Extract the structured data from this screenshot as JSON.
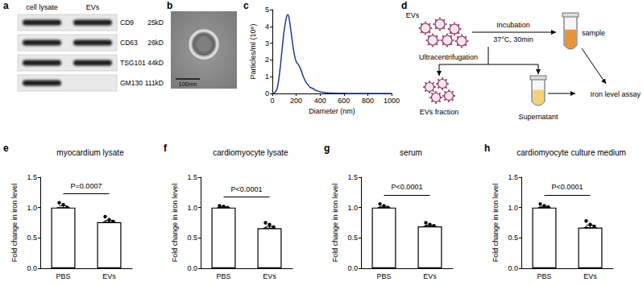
{
  "blot": {
    "panel": "a",
    "lanes": [
      "cell lysate",
      "EVs"
    ],
    "rows": [
      {
        "protein": "CD9",
        "size": "25kD",
        "bands": [
          true,
          true
        ]
      },
      {
        "protein": "CD63",
        "size": "26kD",
        "bands": [
          true,
          true
        ]
      },
      {
        "protein": "TSG101",
        "size": "44kD",
        "bands": [
          true,
          true
        ]
      },
      {
        "protein": "GM130",
        "size": "111kD",
        "bands": [
          true,
          false
        ]
      }
    ]
  },
  "micrograph": {
    "panel": "b",
    "scale_bar": "100nm"
  },
  "schematic": {
    "panel": "d",
    "evs": "EVs",
    "step": "Incubation",
    "condition": "37°C, 30min",
    "sample": "sample",
    "separation": "Ultracentrifugation",
    "fraction": "EVs fraction",
    "supernatant": "Supernatant",
    "assay": "Iron level assay"
  },
  "chart_data": [
    {
      "panel": "c",
      "type": "line",
      "xlabel": "Diameter (nm)",
      "ylabel": "Particles/ml (10⁸)",
      "x": [
        0,
        20,
        40,
        60,
        80,
        100,
        120,
        130,
        140,
        160,
        180,
        200,
        220,
        240,
        260,
        280,
        300,
        320,
        340,
        360,
        380,
        400,
        450,
        500,
        600,
        700,
        800,
        900,
        1000
      ],
      "values": [
        0,
        0.05,
        0.3,
        1.2,
        2.5,
        3.8,
        4.6,
        4.7,
        4.5,
        3.5,
        2.5,
        1.9,
        1.7,
        1.4,
        1.0,
        0.7,
        0.5,
        0.35,
        0.3,
        0.2,
        0.15,
        0.1,
        0.05,
        0.02,
        0.01,
        0,
        0,
        0,
        0
      ],
      "color": "#1f3a93",
      "xlim": [
        0,
        1000
      ],
      "xticks": [
        0,
        200,
        400,
        600,
        800,
        1000
      ],
      "ylim": [
        0,
        5
      ],
      "yticks": [
        0,
        1,
        2,
        3,
        4,
        5
      ],
      "grid": false
    },
    {
      "panel": "e",
      "type": "bar",
      "title": "myocardium lysate",
      "ylabel": "Fold change in iron level",
      "categories": [
        "PBS",
        "EVs"
      ],
      "values": [
        1.0,
        0.76
      ],
      "errors": [
        0.03,
        0.03
      ],
      "points": [
        [
          1.08,
          1.05,
          1.0,
          0.97,
          0.95,
          0.93
        ],
        [
          0.85,
          0.8,
          0.77,
          0.75,
          0.7,
          0.68
        ]
      ],
      "annotation": "P=0.0007",
      "color": "#ffffff",
      "ylim": [
        0,
        1.5
      ],
      "yticks": [
        {
          "value": 0,
          "label": "0.0"
        },
        0.5,
        {
          "value": 1,
          "label": "1.0"
        },
        1.5
      ],
      "grid": false
    },
    {
      "panel": "f",
      "type": "bar",
      "title": "cardiomyocyte lysate",
      "ylabel": "Fold change in iron level",
      "categories": [
        "PBS",
        "EVs"
      ],
      "values": [
        1.0,
        0.66
      ],
      "errors": [
        0.01,
        0.03
      ],
      "points": [
        [
          1.03,
          1.02,
          1.0,
          0.99,
          0.98,
          0.97
        ],
        [
          0.75,
          0.72,
          0.68,
          0.65,
          0.6,
          0.57
        ]
      ],
      "annotation": "P<0.0001",
      "color": "#ffffff",
      "ylim": [
        0,
        1.5
      ],
      "yticks": [
        {
          "value": 0,
          "label": "0.0"
        },
        0.5,
        {
          "value": 1,
          "label": "1.0"
        },
        1.5
      ],
      "grid": false
    },
    {
      "panel": "g",
      "type": "bar",
      "title": "serum",
      "ylabel": "Fold change in iron level",
      "categories": [
        "PBS",
        "EVs"
      ],
      "values": [
        1.0,
        0.69
      ],
      "errors": [
        0.02,
        0.02
      ],
      "points": [
        [
          1.06,
          1.03,
          1.0,
          0.99,
          0.97,
          0.95
        ],
        [
          0.75,
          0.72,
          0.7,
          0.68,
          0.66,
          0.62
        ]
      ],
      "annotation": "P<0.0001",
      "color": "#ffffff",
      "ylim": [
        0,
        1.5
      ],
      "yticks": [
        {
          "value": 0,
          "label": "0.0"
        },
        0.5,
        {
          "value": 1,
          "label": "1.0"
        },
        1.5
      ],
      "grid": false
    },
    {
      "panel": "h",
      "type": "bar",
      "title": "cardiomyocyte culture medium",
      "ylabel": "Fold change in iron level",
      "categories": [
        "PBS",
        "EVs"
      ],
      "values": [
        1.0,
        0.67
      ],
      "errors": [
        0.02,
        0.04
      ],
      "points": [
        [
          1.06,
          1.03,
          1.01,
          0.99,
          0.97,
          0.95
        ],
        [
          0.78,
          0.72,
          0.69,
          0.66,
          0.6,
          0.55
        ]
      ],
      "annotation": "P<0.0001",
      "color": "#ffffff",
      "ylim": [
        0,
        1.5
      ],
      "yticks": [
        {
          "value": 0,
          "label": "0.0"
        },
        0.5,
        {
          "value": 1,
          "label": "1.0"
        },
        1.5
      ],
      "grid": false
    }
  ]
}
